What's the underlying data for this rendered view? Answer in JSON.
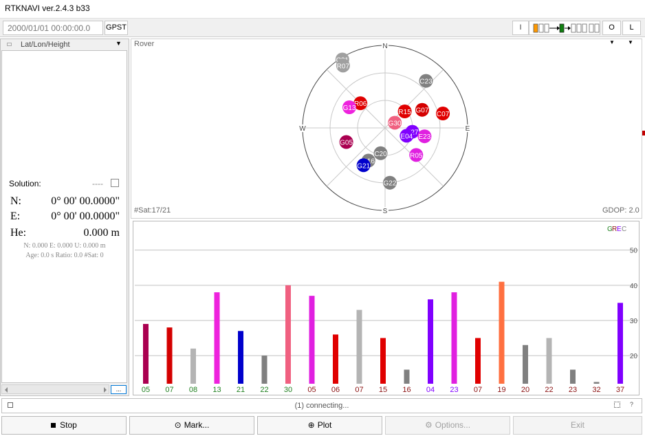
{
  "window": {
    "title": "RTKNAVI ver.2.4.3 b33"
  },
  "toolbar": {
    "time": "2000/01/01 00:00:00.0",
    "time_sys": "GPST",
    "btn_i": "I",
    "btn_o": "O",
    "btn_l": "L"
  },
  "left": {
    "mode": "Lat/Lon/Height",
    "solution_label": "Solution:",
    "solution_status": "----",
    "rows": [
      {
        "label": "N:",
        "value": "0° 00' 00.0000\""
      },
      {
        "label": "E:",
        "value": "0° 00' 00.0000\""
      },
      {
        "label": "He:",
        "value": "0.000 m"
      }
    ],
    "stats1": "N: 0.000 E: 0.000 U: 0.000 m",
    "stats2": "Age: 0.0 s Ratio: 0.0 #Sat: 0",
    "more": "..."
  },
  "skyplot": {
    "receiver": "Rover",
    "nsat": "#Sat:17/21",
    "gdop": "GDOP: 2.0",
    "dirs": {
      "n": "N",
      "e": "E",
      "s": "S",
      "w": "W"
    },
    "sats": [
      {
        "id": "C21",
        "az": 328,
        "el": 2,
        "color": "#a0a0a0"
      },
      {
        "id": "R07",
        "az": 326,
        "el": 8,
        "color": "#a0a0a0"
      },
      {
        "id": "C23",
        "az": 41,
        "el": 22,
        "color": "#808080"
      },
      {
        "id": "R06",
        "az": 315,
        "el": 52,
        "color": "#e00000"
      },
      {
        "id": "G13",
        "az": 300,
        "el": 45,
        "color": "#ee22dd"
      },
      {
        "id": "R15",
        "az": 50,
        "el": 62,
        "color": "#e00000"
      },
      {
        "id": "G07",
        "az": 64,
        "el": 45,
        "color": "#d40000"
      },
      {
        "id": "C07",
        "az": 76,
        "el": 25,
        "color": "#e00000"
      },
      {
        "id": "G30",
        "az": 62,
        "el": 78,
        "color": "#f06080"
      },
      {
        "id": "E27",
        "az": 98,
        "el": 60,
        "color": "#8000ff"
      },
      {
        "id": "E04",
        "az": 110,
        "el": 65,
        "color": "#8000ff"
      },
      {
        "id": "E23",
        "az": 102,
        "el": 46,
        "color": "#e020e0"
      },
      {
        "id": "G05",
        "az": 250,
        "el": 45,
        "color": "#aa0050"
      },
      {
        "id": "C20",
        "az": 190,
        "el": 62,
        "color": "#808080"
      },
      {
        "id": "R05",
        "az": 131,
        "el": 45,
        "color": "#e020e0"
      },
      {
        "id": "R16",
        "az": 207,
        "el": 50,
        "color": "#808080"
      },
      {
        "id": "G21",
        "az": 210,
        "el": 43,
        "color": "#0000cc"
      },
      {
        "id": "G22",
        "az": 175,
        "el": 30,
        "color": "#808080"
      }
    ]
  },
  "snr": {
    "legend": [
      {
        "text": "G",
        "color": "#208020"
      },
      {
        "text": "R",
        "color": "#8a1010"
      },
      {
        "text": "E",
        "color": "#8000ff"
      },
      {
        "text": "C",
        "color": "#808080"
      }
    ],
    "ticks": [
      20,
      30,
      40,
      50
    ],
    "ylim": [
      12,
      56
    ]
  },
  "chart_data": {
    "type": "bar",
    "categories": [
      "05",
      "07",
      "08",
      "13",
      "21",
      "22",
      "30",
      "05",
      "06",
      "07",
      "15",
      "16",
      "04",
      "23",
      "07",
      "19",
      "20",
      "22",
      "23",
      "32",
      "37"
    ],
    "values": [
      29,
      28,
      22,
      38,
      27,
      20,
      40,
      37,
      26,
      33,
      25,
      16,
      36,
      38,
      25,
      41,
      23,
      25,
      16,
      12.5,
      35
    ],
    "colors": [
      "#aa0050",
      "#d40000",
      "#b4b4b4",
      "#ee22dd",
      "#0000cc",
      "#808080",
      "#f06080",
      "#e020e0",
      "#e00000",
      "#b4b4b4",
      "#e00000",
      "#808080",
      "#8000ff",
      "#e020e0",
      "#e00000",
      "#ff7040",
      "#808080",
      "#b4b4b4",
      "#808080",
      "#808080",
      "#8000ff"
    ],
    "label_colors": [
      "#208020",
      "#208020",
      "#208020",
      "#208020",
      "#208020",
      "#208020",
      "#208020",
      "#8a1010",
      "#8a1010",
      "#8a1010",
      "#8a1010",
      "#8a1010",
      "#8000ff",
      "#8000ff",
      "#8a1010",
      "#8a1010",
      "#8a1010",
      "#8a1010",
      "#8a1010",
      "#8a1010",
      "#8a1010"
    ],
    "ylim": [
      12,
      56
    ],
    "yticks": [
      20,
      30,
      40,
      50
    ]
  },
  "status": {
    "text": "(1) connecting..."
  },
  "buttons": {
    "stop": "Stop",
    "mark": "Mark...",
    "plot": "Plot",
    "options": "Options...",
    "exit": "Exit"
  }
}
